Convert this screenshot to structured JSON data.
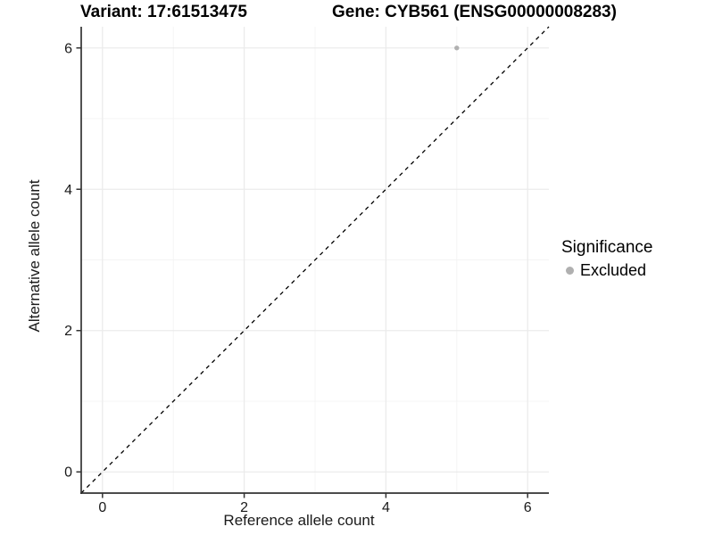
{
  "chart_data": {
    "type": "scatter",
    "title_left": "Variant: 17:61513475",
    "title_right": "Gene: CYB561 (ENSG00000008283)",
    "xlabel": "Reference allele count",
    "ylabel": "Alternative allele count",
    "xlim": [
      -0.3,
      6.3
    ],
    "ylim": [
      -0.3,
      6.3
    ],
    "x_major_ticks": [
      0,
      2,
      4,
      6
    ],
    "y_major_ticks": [
      0,
      2,
      4,
      6
    ],
    "x_minor_ticks": [
      1,
      3,
      5
    ],
    "y_minor_ticks": [
      1,
      3,
      5
    ],
    "grid": true,
    "identity_line": {
      "style": "dashed",
      "x1": -0.3,
      "y1": -0.3,
      "x2": 6.3,
      "y2": 6.3
    },
    "series": [
      {
        "name": "Excluded",
        "color": "#b0b0b0",
        "points": [
          {
            "x": 5,
            "y": 6
          }
        ]
      }
    ],
    "legend": {
      "position": "right",
      "title": "Significance",
      "entries": [
        {
          "label": "Excluded",
          "color": "#b0b0b0"
        }
      ]
    },
    "colors": {
      "background": "#ffffff",
      "grid_major": "#ebebeb",
      "grid_minor": "#f4f4f4",
      "axis_line": "#333333",
      "tick_mark": "#333333",
      "tick_text": "#1a1a1a",
      "identity_line": "#000000",
      "point": "#b0b0b0"
    }
  }
}
